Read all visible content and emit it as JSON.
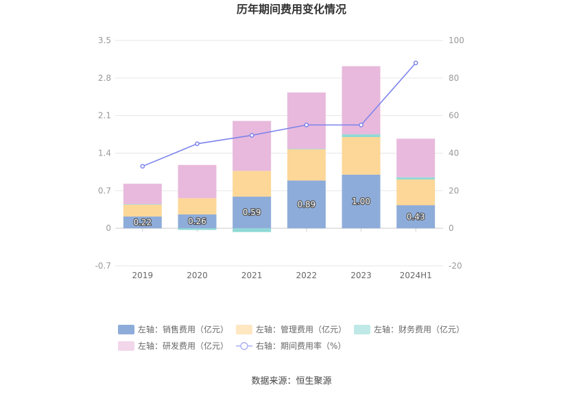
{
  "chart_data": {
    "type": "bar",
    "title": "历年期间费用变化情况",
    "categories": [
      "2019",
      "2020",
      "2021",
      "2022",
      "2023",
      "2024H1"
    ],
    "stacked": true,
    "y_left": {
      "min": -0.7,
      "max": 3.5,
      "ticks": [
        "-0.7",
        "0",
        "0.7",
        "1.4",
        "2.1",
        "2.8",
        "3.5"
      ]
    },
    "y_right": {
      "min": -20,
      "max": 100,
      "ticks": [
        "-20",
        "0",
        "20",
        "40",
        "60",
        "80",
        "100"
      ]
    },
    "series": [
      {
        "name": "左轴：销售费用（亿元）",
        "axis": "left",
        "kind": "bar",
        "color": "#8eacd9",
        "values": [
          0.22,
          0.26,
          0.59,
          0.89,
          1.0,
          0.43
        ],
        "labels": [
          "0.22",
          "0.26",
          "0.59",
          "0.89",
          "1.00",
          "0.43"
        ]
      },
      {
        "name": "左轴：管理费用（亿元）",
        "axis": "left",
        "kind": "bar",
        "color": "#fdd797",
        "values": [
          0.22,
          0.3,
          0.48,
          0.58,
          0.7,
          0.48
        ]
      },
      {
        "name": "左轴：财务费用（亿元）",
        "axis": "left",
        "kind": "bar",
        "color": "#8fd9d6",
        "values": [
          0.01,
          -0.03,
          -0.07,
          0.01,
          0.05,
          0.04
        ]
      },
      {
        "name": "左轴：研发费用（亿元）",
        "axis": "left",
        "kind": "bar",
        "color": "#e8b9dc",
        "values": [
          0.38,
          0.62,
          0.93,
          1.05,
          1.27,
          0.72
        ]
      },
      {
        "name": "右轴：期间费用率（%）",
        "axis": "right",
        "kind": "line",
        "color": "#7b83ec",
        "values": [
          33,
          45,
          49.5,
          55,
          55,
          88
        ]
      }
    ],
    "source": "数据来源：恒生聚源"
  }
}
